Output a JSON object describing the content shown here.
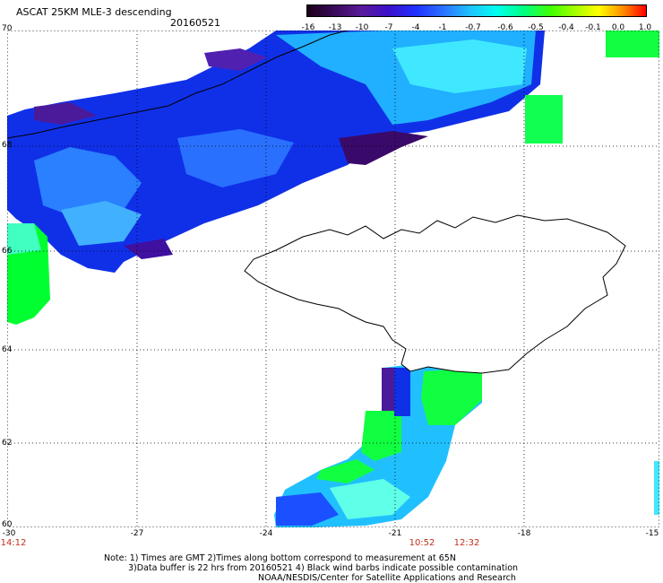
{
  "title": "ASCAT 25KM MLE-3 descending",
  "date": "20160521",
  "colorbar": {
    "labels": [
      "-16",
      "-13",
      "-10",
      "-7",
      "-4",
      "-1",
      "-0.7",
      "-0.6",
      "-0.5",
      "-0.4",
      "-0.1",
      "0.0",
      "1.0"
    ]
  },
  "axes": {
    "lat_labels": [
      "70",
      "68",
      "66",
      "64",
      "62",
      "60"
    ],
    "lon_labels": [
      "-30",
      "-27",
      "-24",
      "-21",
      "-18",
      "-15"
    ]
  },
  "times": [
    "14:12",
    "10:52",
    "12:32"
  ],
  "notes": {
    "line1": "Note: 1) Times are GMT 2)Times along bottom correspond to measurement at 65N",
    "line2": "3)Data buffer is 22 hrs from 20160521 4) Black wind barbs indicate possible contamination",
    "line3": "NOAA/NESDIS/Center for Satellite Applications and Research"
  },
  "colors": {
    "swath_blue": "#1030e8",
    "swath_cyan": "#20e8ff",
    "swath_green": "#00ff30",
    "swath_purple": "#50109a",
    "grid": "#000000",
    "time_label": "#c0301a"
  }
}
